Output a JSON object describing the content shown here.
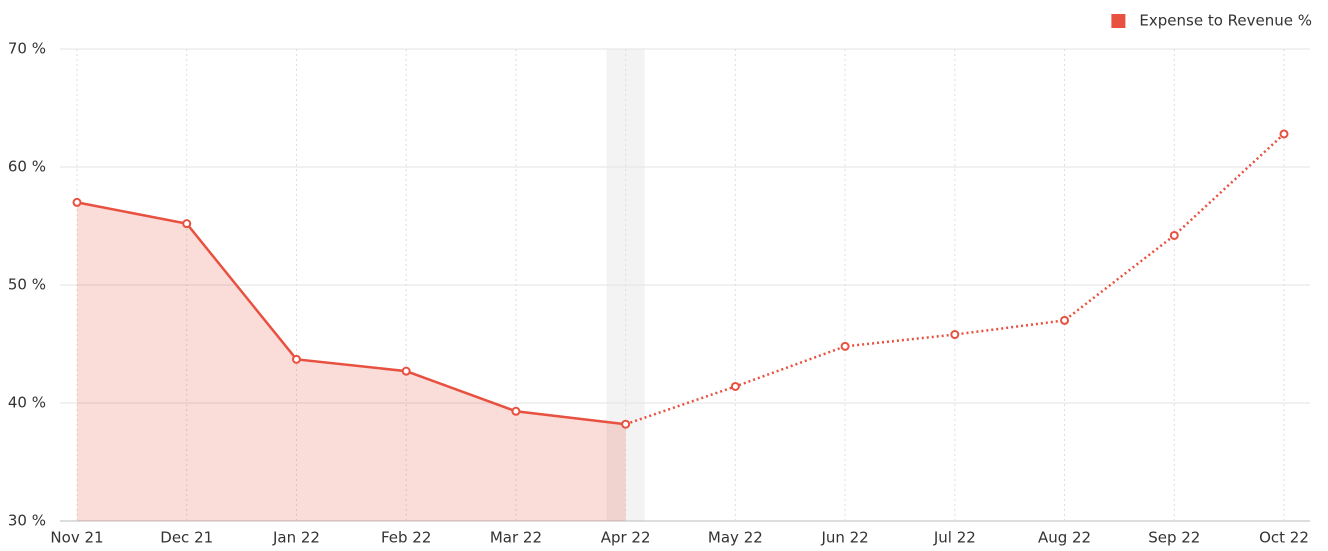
{
  "chart_data": {
    "type": "line",
    "categories": [
      "Nov 21",
      "Dec 21",
      "Jan 22",
      "Feb 22",
      "Mar 22",
      "Apr 22",
      "May 22",
      "Jun 22",
      "Jul 22",
      "Aug 22",
      "Sep 22",
      "Oct 22"
    ],
    "series": [
      {
        "name": "Expense to Revenue %",
        "color": "#e8503f",
        "values": [
          57.0,
          55.2,
          43.7,
          42.7,
          39.3,
          38.2,
          41.4,
          44.8,
          45.8,
          47.0,
          54.2,
          62.8
        ]
      }
    ],
    "ylim": [
      30,
      70
    ],
    "yticks": [
      {
        "value": 30,
        "label": "30 %"
      },
      {
        "value": 40,
        "label": "40 %"
      },
      {
        "value": 50,
        "label": "50 %"
      },
      {
        "value": 60,
        "label": "60 %"
      },
      {
        "value": 70,
        "label": "70 %"
      }
    ],
    "grid": true,
    "legend": "top-right",
    "highlight_index": 5
  }
}
